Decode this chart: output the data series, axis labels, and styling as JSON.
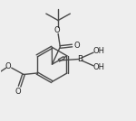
{
  "bg_color": "#eeeeee",
  "line_color": "#4a4a4a",
  "lw": 1.0,
  "fs": 5.5,
  "tc": "#222222",
  "xlim": [
    0,
    10
  ],
  "ylim": [
    0,
    9
  ],
  "figw": 1.5,
  "figh": 1.34,
  "dpi": 100
}
